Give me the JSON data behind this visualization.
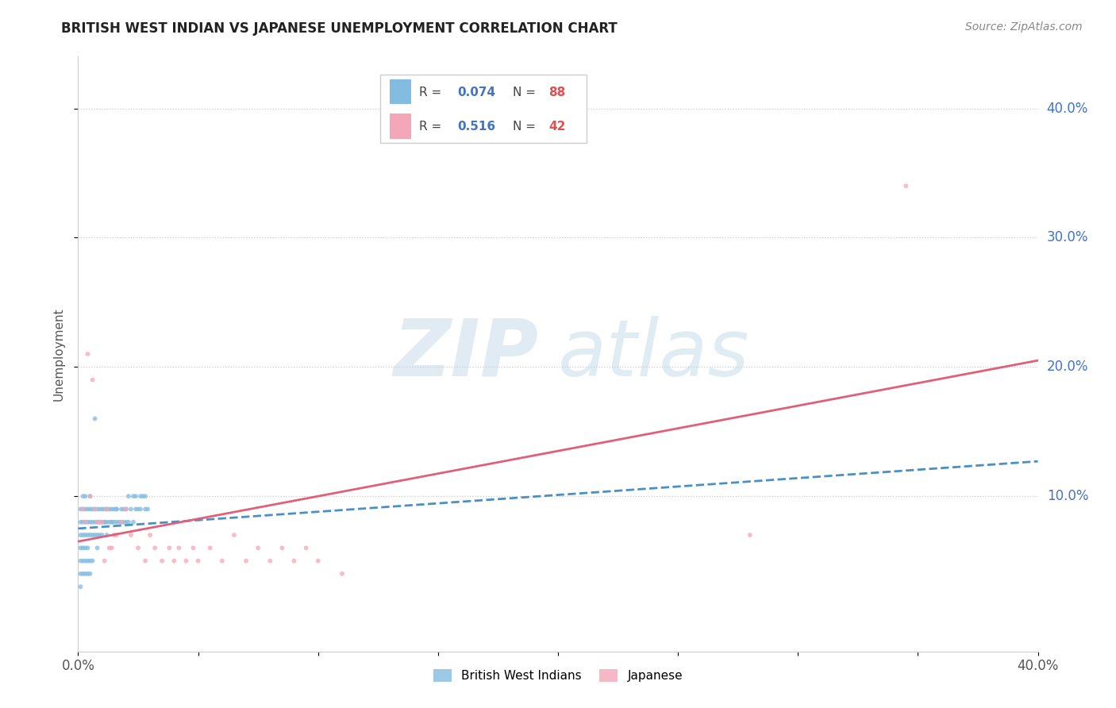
{
  "title": "BRITISH WEST INDIAN VS JAPANESE UNEMPLOYMENT CORRELATION CHART",
  "source": "Source: ZipAtlas.com",
  "ylabel": "Unemployment",
  "xlim": [
    0.0,
    0.4
  ],
  "ylim": [
    -0.02,
    0.44
  ],
  "ytick_positions": [
    0.1,
    0.2,
    0.3,
    0.4
  ],
  "ytick_labels": [
    "10.0%",
    "20.0%",
    "30.0%",
    "40.0%"
  ],
  "blue_color": "#82bce0",
  "pink_color": "#f4a7b9",
  "blue_line_color": "#4a90c4",
  "pink_line_color": "#e0607a",
  "blue_scatter_x": [
    0.001,
    0.001,
    0.001,
    0.001,
    0.002,
    0.002,
    0.002,
    0.002,
    0.002,
    0.003,
    0.003,
    0.003,
    0.003,
    0.003,
    0.004,
    0.004,
    0.004,
    0.004,
    0.005,
    0.005,
    0.005,
    0.005,
    0.006,
    0.006,
    0.006,
    0.007,
    0.007,
    0.007,
    0.008,
    0.008,
    0.008,
    0.009,
    0.009,
    0.01,
    0.01,
    0.011,
    0.011,
    0.012,
    0.012,
    0.013,
    0.013,
    0.014,
    0.014,
    0.015,
    0.015,
    0.016,
    0.016,
    0.017,
    0.018,
    0.018,
    0.019,
    0.019,
    0.02,
    0.02,
    0.021,
    0.021,
    0.022,
    0.023,
    0.023,
    0.024,
    0.024,
    0.025,
    0.026,
    0.026,
    0.027,
    0.028,
    0.028,
    0.029,
    0.001,
    0.001,
    0.001,
    0.002,
    0.002,
    0.003,
    0.003,
    0.004,
    0.004,
    0.005,
    0.005,
    0.006,
    0.007,
    0.008,
    0.009,
    0.01,
    0.011,
    0.012,
    0.014,
    0.016
  ],
  "blue_scatter_y": [
    0.07,
    0.08,
    0.09,
    0.06,
    0.08,
    0.09,
    0.07,
    0.1,
    0.06,
    0.08,
    0.07,
    0.09,
    0.06,
    0.1,
    0.08,
    0.07,
    0.09,
    0.06,
    0.08,
    0.09,
    0.07,
    0.1,
    0.08,
    0.07,
    0.09,
    0.08,
    0.07,
    0.09,
    0.08,
    0.07,
    0.09,
    0.08,
    0.09,
    0.08,
    0.09,
    0.08,
    0.09,
    0.08,
    0.09,
    0.08,
    0.09,
    0.08,
    0.09,
    0.08,
    0.09,
    0.08,
    0.09,
    0.08,
    0.08,
    0.09,
    0.08,
    0.09,
    0.08,
    0.09,
    0.08,
    0.1,
    0.09,
    0.08,
    0.1,
    0.09,
    0.1,
    0.09,
    0.1,
    0.09,
    0.1,
    0.09,
    0.1,
    0.09,
    0.05,
    0.04,
    0.03,
    0.05,
    0.04,
    0.05,
    0.04,
    0.05,
    0.04,
    0.05,
    0.04,
    0.05,
    0.16,
    0.06,
    0.07,
    0.07,
    0.08,
    0.07,
    0.08,
    0.09
  ],
  "pink_scatter_x": [
    0.002,
    0.003,
    0.005,
    0.007,
    0.004,
    0.008,
    0.01,
    0.006,
    0.012,
    0.009,
    0.015,
    0.011,
    0.013,
    0.016,
    0.014,
    0.018,
    0.02,
    0.022,
    0.025,
    0.028,
    0.03,
    0.032,
    0.035,
    0.038,
    0.04,
    0.042,
    0.045,
    0.048,
    0.05,
    0.055,
    0.06,
    0.065,
    0.07,
    0.075,
    0.08,
    0.085,
    0.09,
    0.095,
    0.1,
    0.11,
    0.28,
    0.345
  ],
  "pink_scatter_y": [
    0.09,
    0.08,
    0.1,
    0.09,
    0.21,
    0.08,
    0.08,
    0.19,
    0.09,
    0.08,
    0.07,
    0.05,
    0.06,
    0.07,
    0.06,
    0.08,
    0.09,
    0.07,
    0.06,
    0.05,
    0.07,
    0.06,
    0.05,
    0.06,
    0.05,
    0.06,
    0.05,
    0.06,
    0.05,
    0.06,
    0.05,
    0.07,
    0.05,
    0.06,
    0.05,
    0.06,
    0.05,
    0.06,
    0.05,
    0.04,
    0.07,
    0.34
  ],
  "blue_line_x": [
    0.0,
    0.4
  ],
  "blue_line_y": [
    0.075,
    0.127
  ],
  "pink_line_x": [
    0.0,
    0.4
  ],
  "pink_line_y": [
    0.065,
    0.205
  ]
}
